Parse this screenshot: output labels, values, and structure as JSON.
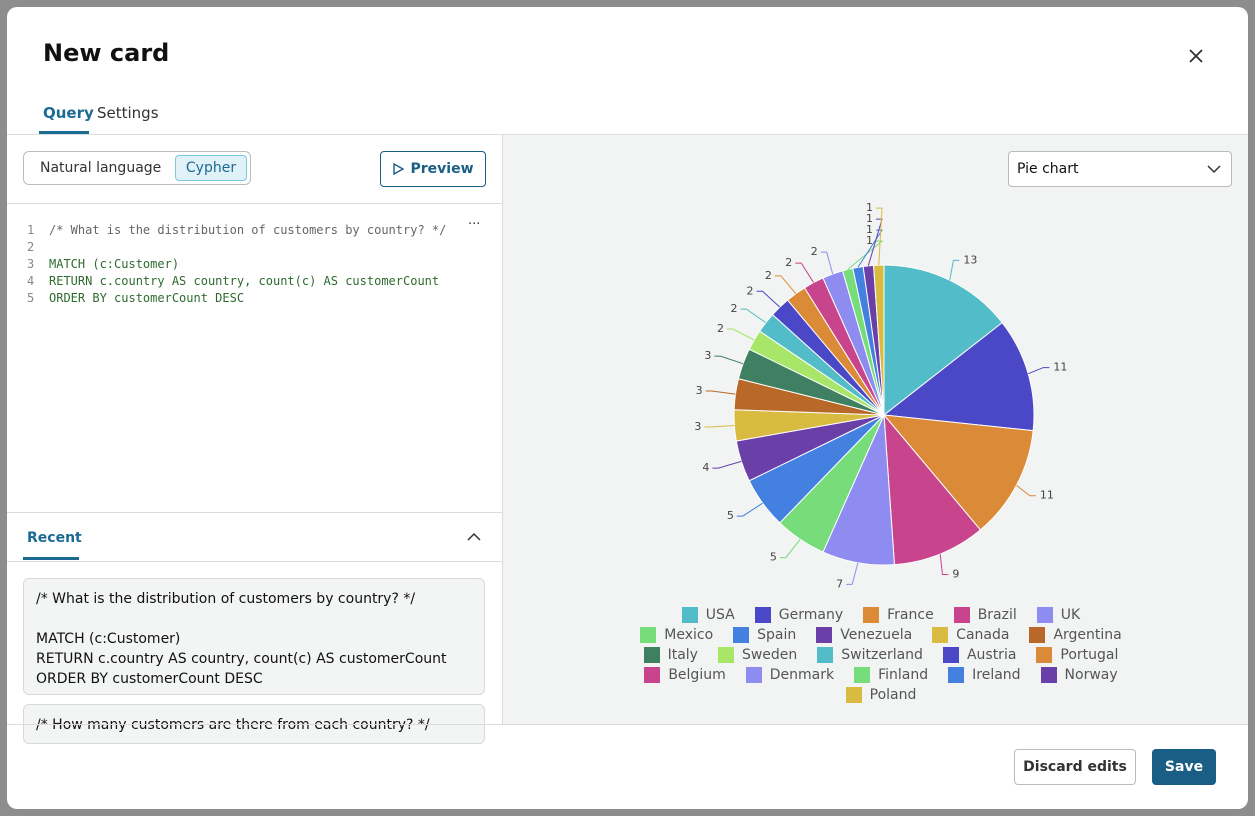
{
  "header": {
    "title": "New card"
  },
  "tabs": [
    "Query",
    "Settings"
  ],
  "mode_toggle": [
    "Natural language",
    "Cypher"
  ],
  "preview_button": "Preview",
  "editor": {
    "lines": [
      {
        "number": 1,
        "text": "/* What is the distribution of customers by country? */"
      },
      {
        "number": 2
      },
      {
        "number": 3,
        "text": "MATCH (c:Customer)"
      },
      {
        "number": 4,
        "text": "RETURN c.country AS country, count(c) AS customerCount"
      },
      {
        "number": 5,
        "text": "ORDER BY customerCount DESC"
      }
    ]
  },
  "recent": {
    "title": "Recent",
    "items": [
      {
        "comment": "/* What is the distribution of customers by country? */",
        "lines": [
          "MATCH (c:Customer)",
          "RETURN c.country AS country, count(c) AS customerCount",
          "ORDER BY customerCount DESC"
        ]
      },
      {
        "comment": "/* How many customers are there from each country? */"
      }
    ]
  },
  "chart_type_select": "Pie chart",
  "chart_data": {
    "type": "pie",
    "categories": [
      "USA",
      "Germany",
      "France",
      "Brazil",
      "UK",
      "Mexico",
      "Spain",
      "Venezuela",
      "Canada",
      "Argentina",
      "Italy",
      "Sweden",
      "Switzerland",
      "Austria",
      "Portugal",
      "Belgium",
      "Denmark",
      "Finland",
      "Ireland",
      "Norway",
      "Poland"
    ],
    "values": [
      13,
      11,
      11,
      9,
      7,
      5,
      5,
      4,
      3,
      3,
      3,
      2,
      2,
      2,
      2,
      2,
      2,
      1,
      1,
      1,
      1
    ],
    "colors": [
      "#52bcc8",
      "#4b48c8",
      "#db8a38",
      "#c8448c",
      "#8e8cf0",
      "#77dc7a",
      "#4480e0",
      "#6a3fa8",
      "#d8bb40",
      "#b8692a",
      "#3f7f62",
      "#a8e66a",
      "#52bcc8",
      "#4b48c8",
      "#db8a38",
      "#c8448c",
      "#8e8cf0",
      "#77dc7a",
      "#4480e0",
      "#6a3fa8",
      "#d8bb40"
    ]
  },
  "footer": {
    "discard": "Discard edits",
    "save": "Save"
  }
}
